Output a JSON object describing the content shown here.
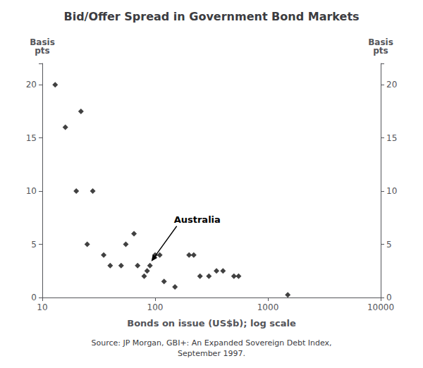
{
  "chart_data": {
    "type": "scatter",
    "title": "Bid/Offer Spread in Government Bond Markets",
    "xlabel": "Bonds on issue (US$b); log scale",
    "ylabel": "Basis\npts",
    "y2label": "Basis\npts",
    "source": "Source: JP Morgan, GBI+: An Expanded Sovereign Debt Index,\nSeptember 1997.",
    "x": [
      13,
      16,
      22,
      20,
      28,
      25,
      35,
      40,
      50,
      55,
      65,
      70,
      80,
      85,
      90,
      100,
      110,
      120,
      150,
      200,
      220,
      250,
      300,
      350,
      400,
      500,
      550,
      1500
    ],
    "values": [
      20,
      16,
      17.5,
      10,
      10,
      5,
      4,
      3,
      3,
      5,
      6,
      3,
      2,
      2.5,
      3,
      4,
      4,
      1.5,
      1,
      4,
      4,
      2,
      2,
      2.5,
      2.5,
      2,
      2,
      0.25
    ],
    "color": "#111111",
    "marker": "diamond",
    "log": "x",
    "grid": false,
    "xlim": [
      10,
      10000
    ],
    "xticks": [
      10,
      100,
      1000,
      10000
    ],
    "ylim": [
      0,
      22
    ],
    "yticks": [
      0,
      5,
      10,
      15,
      20
    ],
    "y2lim": [
      0,
      22
    ],
    "y2ticks": [
      0,
      5,
      10,
      15,
      20
    ],
    "annotations": [
      {
        "text": "Australia",
        "x": 90,
        "y": 3
      }
    ]
  }
}
